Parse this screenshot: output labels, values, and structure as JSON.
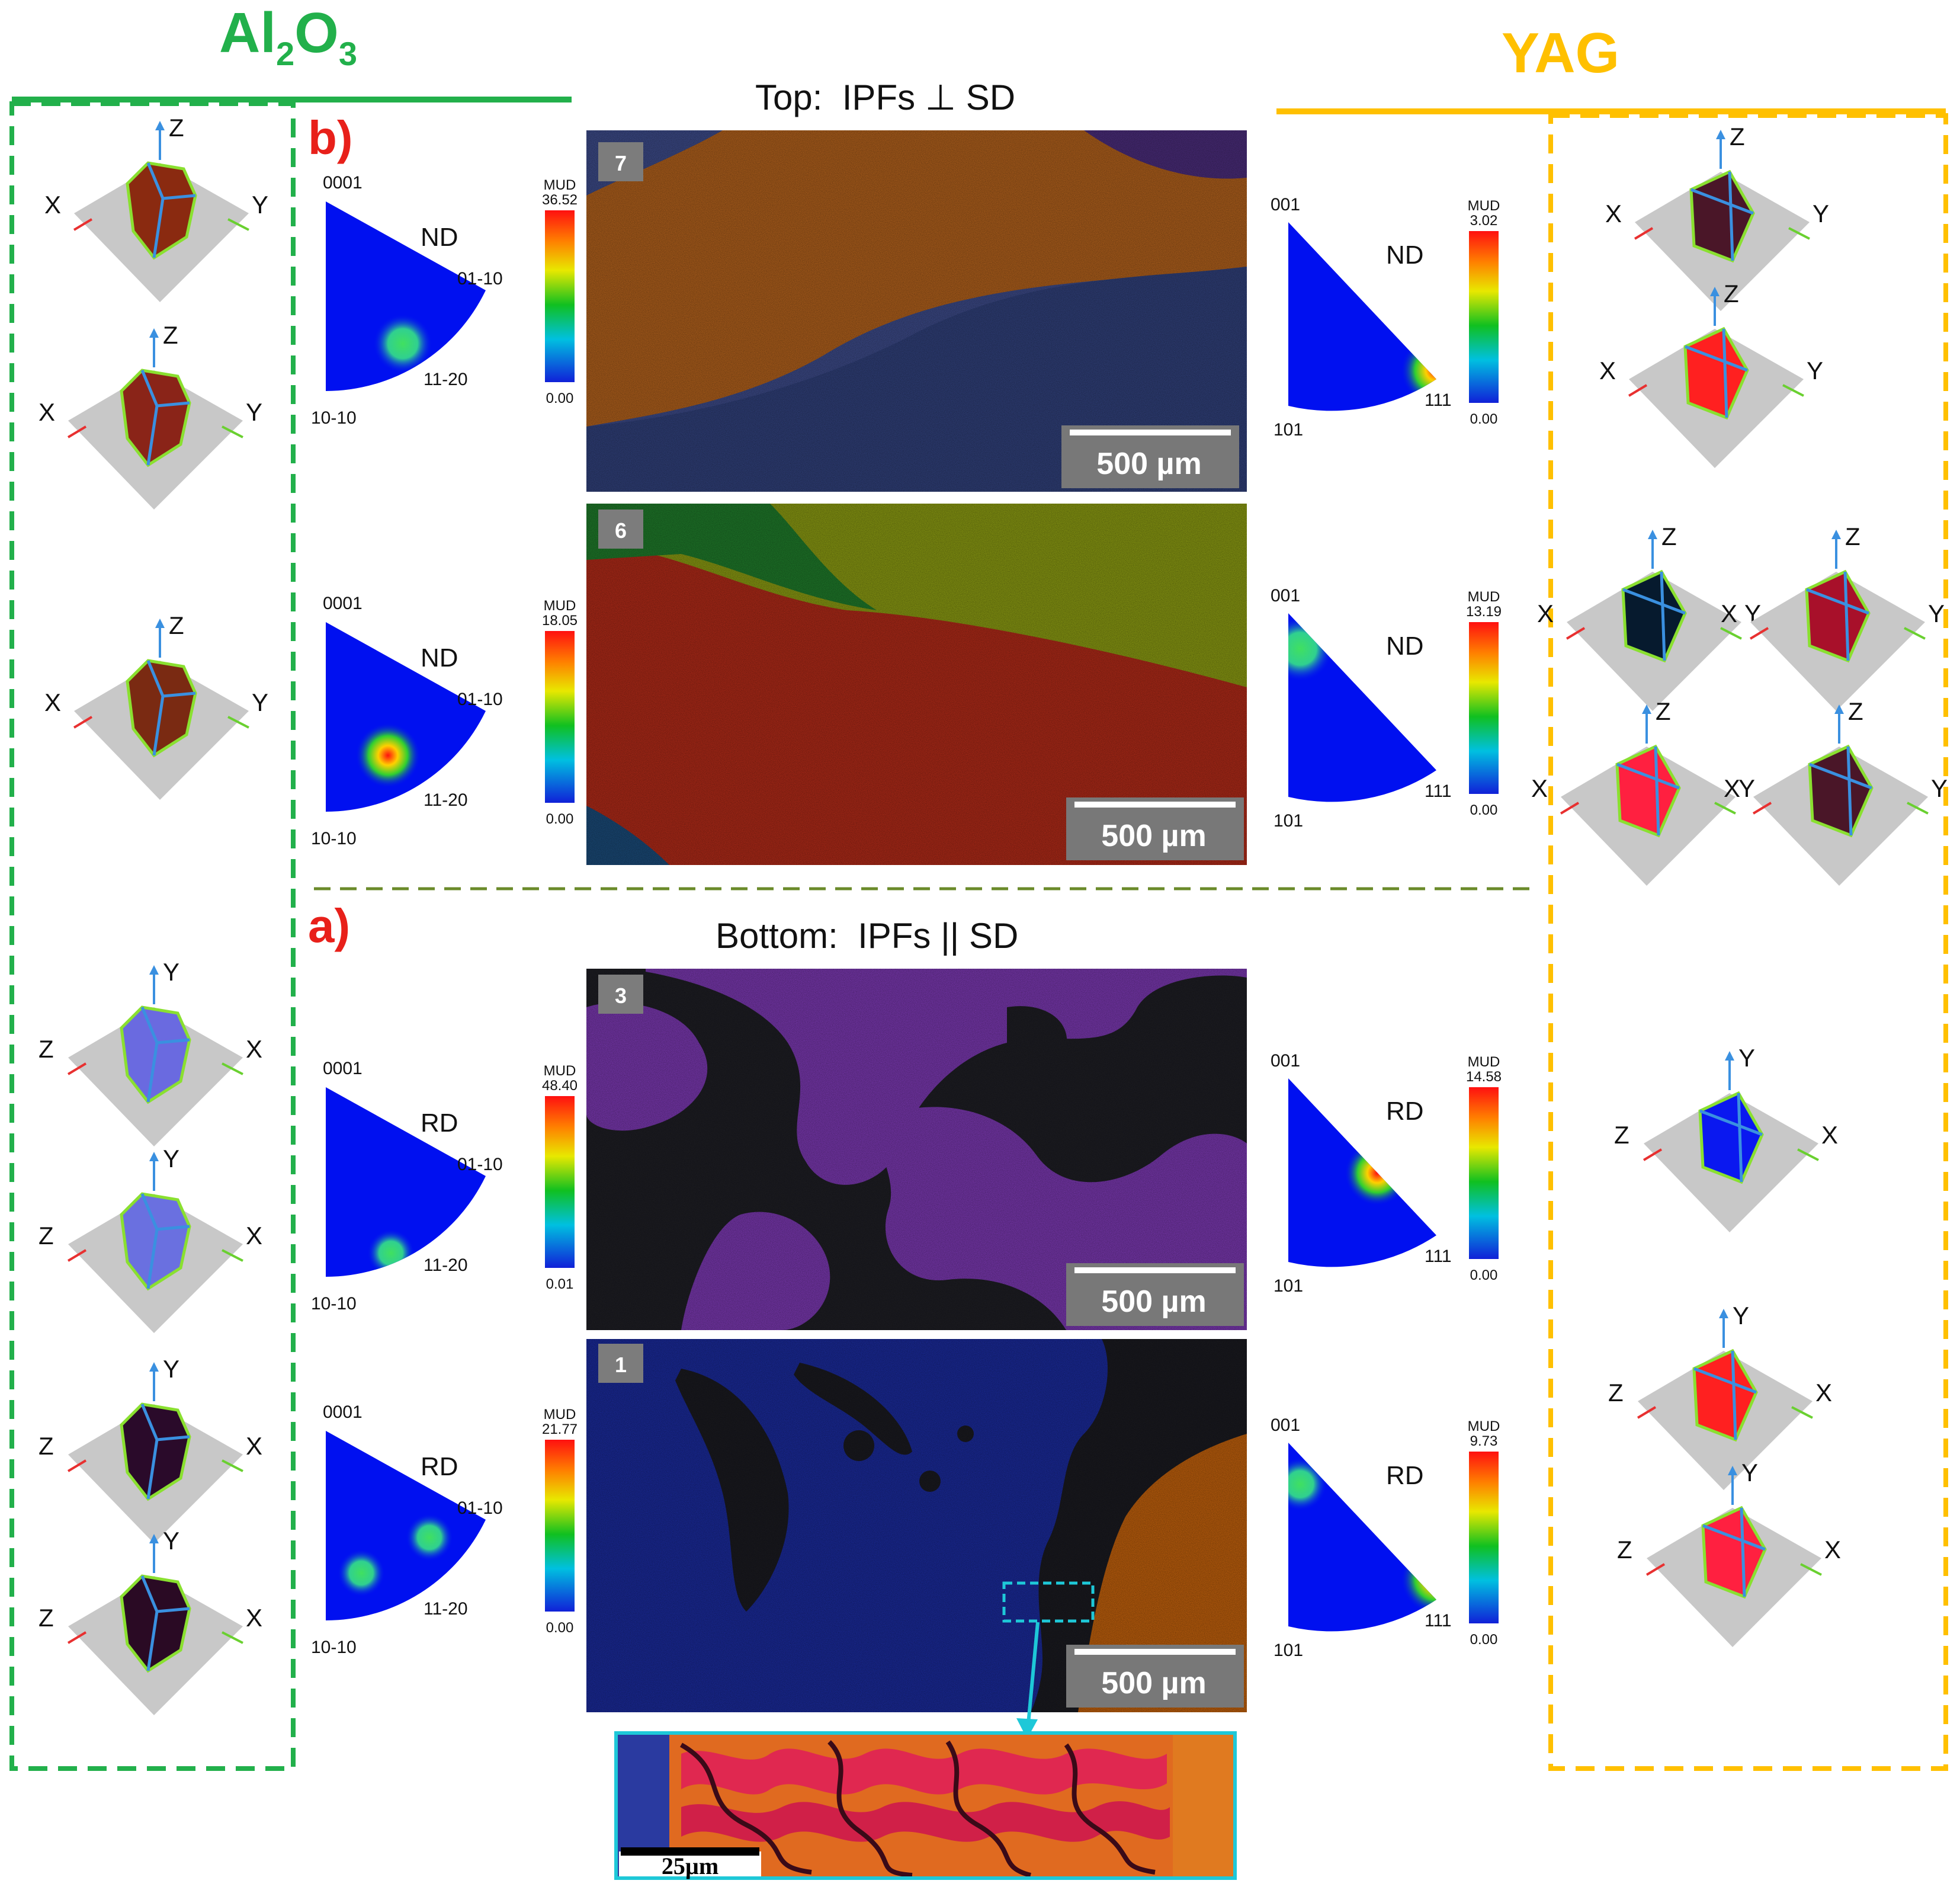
{
  "headers": {
    "al2o3": {
      "main": "Al",
      "sub1": "2",
      "mid": "O",
      "sub2": "3"
    },
    "yag": "YAG"
  },
  "sections": {
    "top": {
      "label": "b)",
      "title": "Top:  IPFs ⊥ SD"
    },
    "bottom": {
      "label": "a)",
      "title": "Bottom:  IPFs || SD"
    }
  },
  "colors": {
    "al2o3_green": "#22b04b",
    "yag_orange": "#ffc000",
    "divider_olive": "#6a8a2a",
    "label_red": "#e8201a",
    "zoom_cyan": "#1ec8d8"
  },
  "axes": {
    "x": "X",
    "y": "Y",
    "z": "Z"
  },
  "al_ipf": [
    {
      "ref": "ND",
      "corner_top": "0001",
      "corner_right": "01-10",
      "corner_bottom": "10-10",
      "edge_label": "11-20",
      "mud_label": "MUD",
      "mud_max": "36.52",
      "mud_min": "0.00"
    },
    {
      "ref": "ND",
      "corner_top": "0001",
      "corner_right": "01-10",
      "corner_bottom": "10-10",
      "edge_label": "11-20",
      "mud_label": "MUD",
      "mud_max": "18.05",
      "mud_min": "0.00"
    },
    {
      "ref": "RD",
      "corner_top": "0001",
      "corner_right": "01-10",
      "corner_bottom": "10-10",
      "edge_label": "11-20",
      "mud_label": "MUD",
      "mud_max": "48.40",
      "mud_min": "0.01"
    },
    {
      "ref": "RD",
      "corner_top": "0001",
      "corner_right": "01-10",
      "corner_bottom": "10-10",
      "edge_label": "11-20",
      "mud_label": "MUD",
      "mud_max": "21.77",
      "mud_min": "0.00"
    }
  ],
  "yag_ipf": [
    {
      "ref": "ND",
      "corner_top": "001",
      "corner_bottom": "101",
      "corner_right": "111",
      "mud_label": "MUD",
      "mud_max": "3.02",
      "mud_min": "0.00"
    },
    {
      "ref": "ND",
      "corner_top": "001",
      "corner_bottom": "101",
      "corner_right": "111",
      "mud_label": "MUD",
      "mud_max": "13.19",
      "mud_min": "0.00"
    },
    {
      "ref": "RD",
      "corner_top": "001",
      "corner_bottom": "101",
      "corner_right": "111",
      "mud_label": "MUD",
      "mud_max": "14.58",
      "mud_min": "0.00"
    },
    {
      "ref": "RD",
      "corner_top": "001",
      "corner_bottom": "101",
      "corner_right": "111",
      "mud_label": "MUD",
      "mud_max": "9.73",
      "mud_min": "0.00"
    }
  ],
  "maps": [
    {
      "number": "7",
      "scale_bar": "500 µm"
    },
    {
      "number": "6",
      "scale_bar": "500 µm"
    },
    {
      "number": "3",
      "scale_bar": "500 µm"
    },
    {
      "number": "1",
      "scale_bar": "500 µm"
    }
  ],
  "inset": {
    "scale_bar": "25µm"
  }
}
